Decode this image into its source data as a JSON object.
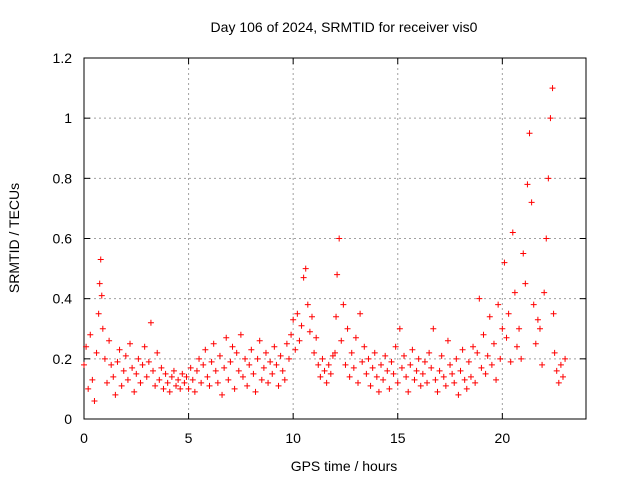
{
  "chart_data": {
    "type": "scatter",
    "title": "Day 106 of 2024, SRMTID for receiver vis0",
    "xlabel": "GPS time / hours",
    "ylabel": "SRMTID / TECUs",
    "xlim": [
      0,
      24
    ],
    "ylim": [
      0,
      1.2
    ],
    "xticks": [
      0,
      5,
      10,
      15,
      20
    ],
    "yticks": [
      0,
      0.2,
      0.4,
      0.6,
      0.8,
      1,
      1.2
    ],
    "xtick_labels": [
      "0",
      "5",
      "10",
      "15",
      "20"
    ],
    "ytick_labels": [
      "0",
      "0.2",
      "0.4",
      "0.6",
      "0.8",
      "1",
      "1.2"
    ],
    "grid": true,
    "marker": "+",
    "color": "#ff0000",
    "series": [
      {
        "name": "vis0",
        "x": [
          0.0,
          0.1,
          0.2,
          0.3,
          0.4,
          0.5,
          0.6,
          0.7,
          0.75,
          0.8,
          0.85,
          0.9,
          1.0,
          1.1,
          1.2,
          1.3,
          1.4,
          1.5,
          1.6,
          1.7,
          1.8,
          1.9,
          2.0,
          2.1,
          2.2,
          2.3,
          2.4,
          2.5,
          2.6,
          2.7,
          2.8,
          2.9,
          3.0,
          3.1,
          3.2,
          3.3,
          3.4,
          3.5,
          3.6,
          3.7,
          3.8,
          3.9,
          4.0,
          4.1,
          4.2,
          4.3,
          4.4,
          4.5,
          4.6,
          4.7,
          4.8,
          4.9,
          5.0,
          5.1,
          5.2,
          5.3,
          5.4,
          5.5,
          5.6,
          5.7,
          5.8,
          5.9,
          6.0,
          6.1,
          6.2,
          6.3,
          6.4,
          6.5,
          6.6,
          6.7,
          6.8,
          6.9,
          7.0,
          7.1,
          7.2,
          7.3,
          7.4,
          7.5,
          7.6,
          7.7,
          7.8,
          7.9,
          8.0,
          8.1,
          8.2,
          8.3,
          8.4,
          8.5,
          8.6,
          8.7,
          8.8,
          8.9,
          9.0,
          9.1,
          9.2,
          9.3,
          9.4,
          9.5,
          9.6,
          9.7,
          9.8,
          9.9,
          10.0,
          10.1,
          10.2,
          10.3,
          10.4,
          10.5,
          10.6,
          10.7,
          10.8,
          10.9,
          11.0,
          11.1,
          11.2,
          11.3,
          11.4,
          11.5,
          11.6,
          11.7,
          11.8,
          11.9,
          12.0,
          12.05,
          12.1,
          12.2,
          12.3,
          12.4,
          12.5,
          12.6,
          12.7,
          12.8,
          12.9,
          13.0,
          13.1,
          13.2,
          13.3,
          13.4,
          13.5,
          13.6,
          13.7,
          13.8,
          13.9,
          14.0,
          14.1,
          14.2,
          14.3,
          14.4,
          14.5,
          14.6,
          14.7,
          14.8,
          14.9,
          15.0,
          15.1,
          15.2,
          15.3,
          15.4,
          15.5,
          15.6,
          15.7,
          15.8,
          15.9,
          16.0,
          16.1,
          16.2,
          16.3,
          16.4,
          16.5,
          16.6,
          16.7,
          16.8,
          16.9,
          17.0,
          17.1,
          17.2,
          17.3,
          17.4,
          17.5,
          17.6,
          17.7,
          17.8,
          17.9,
          18.0,
          18.1,
          18.2,
          18.3,
          18.4,
          18.5,
          18.6,
          18.7,
          18.8,
          18.9,
          19.0,
          19.1,
          19.2,
          19.3,
          19.4,
          19.5,
          19.6,
          19.7,
          19.8,
          19.9,
          20.0,
          20.1,
          20.2,
          20.3,
          20.4,
          20.5,
          20.6,
          20.7,
          20.8,
          20.9,
          21.0,
          21.1,
          21.2,
          21.3,
          21.4,
          21.5,
          21.6,
          21.7,
          21.8,
          21.9,
          22.0,
          22.1,
          22.2,
          22.3,
          22.4,
          22.45,
          22.5,
          22.6,
          22.7,
          22.8,
          22.9,
          23.0
        ],
        "y": [
          0.18,
          0.24,
          0.1,
          0.28,
          0.13,
          0.06,
          0.22,
          0.35,
          0.45,
          0.53,
          0.41,
          0.3,
          0.2,
          0.12,
          0.26,
          0.18,
          0.14,
          0.08,
          0.19,
          0.23,
          0.11,
          0.16,
          0.21,
          0.13,
          0.25,
          0.17,
          0.09,
          0.15,
          0.2,
          0.12,
          0.18,
          0.24,
          0.14,
          0.19,
          0.32,
          0.16,
          0.11,
          0.22,
          0.13,
          0.17,
          0.1,
          0.15,
          0.12,
          0.09,
          0.14,
          0.16,
          0.11,
          0.13,
          0.1,
          0.15,
          0.12,
          0.14,
          0.1,
          0.17,
          0.13,
          0.09,
          0.16,
          0.2,
          0.12,
          0.18,
          0.23,
          0.14,
          0.11,
          0.19,
          0.25,
          0.16,
          0.12,
          0.21,
          0.08,
          0.17,
          0.27,
          0.13,
          0.19,
          0.24,
          0.1,
          0.22,
          0.16,
          0.28,
          0.14,
          0.2,
          0.11,
          0.18,
          0.23,
          0.15,
          0.09,
          0.2,
          0.26,
          0.13,
          0.17,
          0.22,
          0.12,
          0.19,
          0.15,
          0.24,
          0.18,
          0.11,
          0.21,
          0.16,
          0.13,
          0.25,
          0.2,
          0.28,
          0.33,
          0.23,
          0.35,
          0.26,
          0.31,
          0.47,
          0.5,
          0.38,
          0.29,
          0.34,
          0.22,
          0.27,
          0.18,
          0.14,
          0.2,
          0.16,
          0.12,
          0.18,
          0.15,
          0.21,
          0.22,
          0.34,
          0.48,
          0.6,
          0.26,
          0.38,
          0.18,
          0.3,
          0.14,
          0.22,
          0.17,
          0.27,
          0.12,
          0.35,
          0.19,
          0.24,
          0.15,
          0.2,
          0.11,
          0.17,
          0.22,
          0.14,
          0.09,
          0.18,
          0.13,
          0.21,
          0.16,
          0.1,
          0.19,
          0.15,
          0.24,
          0.12,
          0.3,
          0.17,
          0.21,
          0.14,
          0.09,
          0.18,
          0.23,
          0.13,
          0.16,
          0.2,
          0.11,
          0.15,
          0.19,
          0.12,
          0.22,
          0.17,
          0.3,
          0.13,
          0.09,
          0.16,
          0.21,
          0.14,
          0.11,
          0.26,
          0.18,
          0.15,
          0.12,
          0.2,
          0.08,
          0.16,
          0.23,
          0.13,
          0.1,
          0.19,
          0.14,
          0.24,
          0.12,
          0.22,
          0.4,
          0.17,
          0.28,
          0.15,
          0.21,
          0.34,
          0.18,
          0.25,
          0.13,
          0.38,
          0.2,
          0.3,
          0.52,
          0.27,
          0.35,
          0.19,
          0.62,
          0.42,
          0.24,
          0.3,
          0.2,
          0.55,
          0.45,
          0.78,
          0.95,
          0.72,
          0.38,
          0.25,
          0.33,
          0.3,
          0.18,
          0.42,
          0.6,
          0.8,
          1.0,
          1.1,
          0.35,
          0.22,
          0.16,
          0.12,
          0.18,
          0.14,
          0.2
        ]
      }
    ]
  }
}
